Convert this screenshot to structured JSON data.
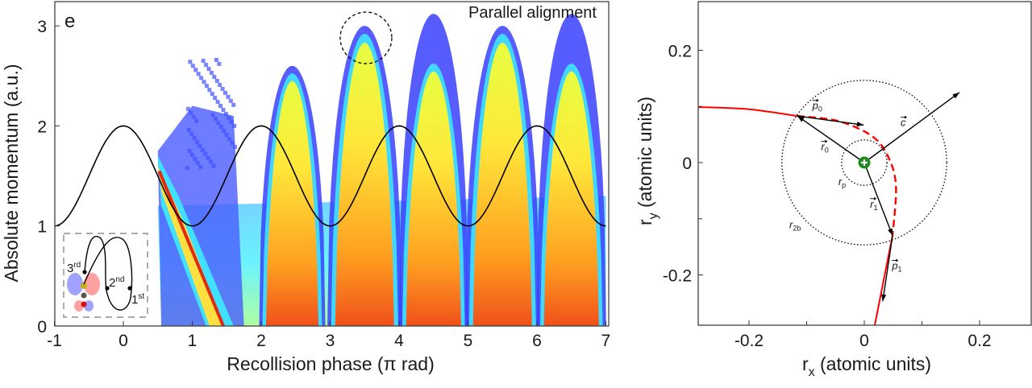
{
  "chart_data": [
    {
      "type": "heatmap",
      "panel_label": "e",
      "annotation": "Parallel alignment",
      "xlabel": "Recollision phase (π rad)",
      "ylabel": "Absolute momentum (a.u.)",
      "xlim": [
        -1,
        7
      ],
      "ylim": [
        0,
        3.25
      ],
      "xticks": [
        "-1",
        "0",
        "1",
        "2",
        "3",
        "4",
        "5",
        "6",
        "7"
      ],
      "yticks": [
        "0",
        "1",
        "2",
        "3"
      ],
      "colormap": [
        "#1a1aff",
        "#3fd7ff",
        "#ffff3a",
        "#ff9a1a",
        "#e83010"
      ],
      "line": {
        "x": [
          -1,
          -0.5,
          0,
          0.5,
          1,
          1.5,
          2,
          2.5,
          3,
          3.5,
          4,
          4.5,
          5,
          5.5,
          6,
          6.5,
          7
        ],
        "y": [
          1,
          1.5,
          2,
          1.5,
          1,
          1.5,
          2,
          1.5,
          1,
          1.5,
          2,
          1.5,
          1,
          1.5,
          2,
          1.5,
          1
        ]
      },
      "lobes": [
        {
          "center": 2.45,
          "halfwidth": 0.4,
          "peak": 2.55,
          "outer_peak": 2.6
        },
        {
          "center": 3.5,
          "halfwidth": 0.45,
          "peak": 2.95,
          "outer_peak": 3.0
        },
        {
          "center": 4.5,
          "halfwidth": 0.42,
          "peak": 2.65,
          "outer_peak": 3.12
        },
        {
          "center": 5.5,
          "halfwidth": 0.45,
          "peak": 2.95,
          "outer_peak": 3.0
        },
        {
          "center": 6.5,
          "halfwidth": 0.42,
          "peak": 2.65,
          "outer_peak": 3.12
        }
      ],
      "highlight_circle": {
        "x": 3.52,
        "y": 2.88
      },
      "inset": {
        "labels": [
          "3",
          "rd",
          "2",
          "nd",
          "1",
          "st"
        ]
      }
    },
    {
      "type": "line",
      "xlabel": "r",
      "xlabel_sub": "x",
      "xlabel_rest": " (atomic units)",
      "ylabel": "r",
      "ylabel_sub": "y",
      "ylabel_rest": " (atomic units)",
      "xlim": [
        -0.29,
        0.29
      ],
      "ylim": [
        -0.29,
        0.29
      ],
      "xticks": [
        "-0.2",
        "0",
        "0.2"
      ],
      "yticks": [
        "0.2",
        "0",
        "-0.2"
      ],
      "trajectory_solid_in": [
        [
          -0.288,
          0.099
        ],
        [
          -0.2,
          0.095
        ],
        [
          -0.116,
          0.083
        ]
      ],
      "trajectory_dashed": [
        [
          -0.116,
          0.083
        ],
        [
          -0.045,
          0.074
        ],
        [
          0.015,
          0.046
        ],
        [
          0.043,
          0.007
        ],
        [
          0.055,
          -0.044
        ],
        [
          0.049,
          -0.13
        ]
      ],
      "trajectory_solid_out": [
        [
          0.049,
          -0.13
        ],
        [
          0.018,
          -0.29
        ]
      ],
      "circles": [
        {
          "name": "r2b",
          "radius": 0.145
        },
        {
          "name": "rp",
          "radius": 0.04
        }
      ],
      "vectors": [
        {
          "name": "r0",
          "from": [
            0,
            0
          ],
          "to": [
            -0.116,
            0.083
          ]
        },
        {
          "name": "p0",
          "from": [
            -0.116,
            0.083
          ],
          "to": [
            -0.001,
            0.067
          ]
        },
        {
          "name": "c",
          "from": [
            0,
            0
          ],
          "to": [
            0.165,
            0.125
          ]
        },
        {
          "name": "r1",
          "from": [
            0,
            0
          ],
          "to": [
            0.049,
            -0.13
          ]
        },
        {
          "name": "p1",
          "from": [
            0.049,
            -0.13
          ],
          "to": [
            0.032,
            -0.247
          ]
        }
      ],
      "labels": [
        {
          "base": "p",
          "sub": "0",
          "vec": true,
          "x": -0.09,
          "y": 0.095
        },
        {
          "base": "c",
          "sub": "",
          "vec": true,
          "x": 0.063,
          "y": 0.065
        },
        {
          "base": "r",
          "sub": "0",
          "vec": true,
          "x": -0.075,
          "y": 0.022
        },
        {
          "base": "r",
          "sub": "p",
          "vec": false,
          "x": -0.045,
          "y": -0.04
        },
        {
          "base": "r",
          "sub": "1",
          "vec": true,
          "x": 0.01,
          "y": -0.08
        },
        {
          "base": "r",
          "sub": "2b",
          "vec": false,
          "x": -0.13,
          "y": -0.117
        },
        {
          "base": "p",
          "sub": "1",
          "vec": true,
          "x": 0.048,
          "y": -0.19
        }
      ],
      "colors": {
        "trajectory": "#ff0000",
        "nucleus": "#1f8a1f"
      }
    }
  ]
}
